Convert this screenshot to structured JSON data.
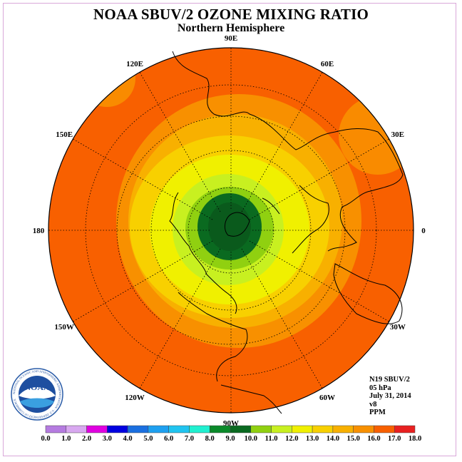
{
  "title": "NOAA SBUV/2 OZONE MIXING RATIO",
  "subtitle": "Northern Hemisphere",
  "longitude_labels": [
    "90E",
    "60E",
    "30E",
    "0",
    "30W",
    "60W",
    "90W",
    "120W",
    "150W",
    "180",
    "150E",
    "120E"
  ],
  "info": {
    "instrument": "N19 SBUV/2",
    "pressure": "05 hPa",
    "date": "July 31, 2014",
    "version": "v8",
    "units": "PPM"
  },
  "logo": {
    "text": "NOAA",
    "ring_text": "NATIONAL OCEANIC AND ATMOSPHERIC ADMINISTRATION · U.S. DEPARTMENT OF COMMERCE"
  },
  "colorbar": {
    "ticks": [
      "0.0",
      "1.0",
      "2.0",
      "3.0",
      "4.0",
      "5.0",
      "6.0",
      "7.0",
      "8.0",
      "9.0",
      "10.0",
      "11.0",
      "12.0",
      "13.0",
      "14.0",
      "15.0",
      "16.0",
      "17.0",
      "18.0"
    ],
    "colors": [
      "#b57be0",
      "#d8a8f0",
      "#e000e0",
      "#0000e0",
      "#1a6fe0",
      "#1ea0f0",
      "#20c4f0",
      "#20f0d0",
      "#0a8a2a",
      "#0a6a20",
      "#90d010",
      "#c8f020",
      "#f0f000",
      "#f8d000",
      "#f8b000",
      "#f89000",
      "#f86000",
      "#e82020",
      "#804020"
    ]
  },
  "chart_data": {
    "type": "heatmap",
    "projection": "polar stereographic, Northern Hemisphere",
    "variable": "ozone mixing ratio",
    "units": "PPM",
    "scale_range": [
      0.0,
      18.0
    ],
    "contours_approx_ppm": [
      {
        "region": "pole",
        "value_range": [
          9.0,
          10.0
        ]
      },
      {
        "region": "high-latitude ring",
        "value_range": [
          10.0,
          11.0
        ]
      },
      {
        "region": "high-latitude ring",
        "value_range": [
          11.0,
          12.0
        ]
      },
      {
        "region": "mid-high latitudes",
        "value_range": [
          12.0,
          13.0
        ]
      },
      {
        "region": "mid latitudes",
        "value_range": [
          13.0,
          14.0
        ]
      },
      {
        "region": "mid latitudes",
        "value_range": [
          14.0,
          15.0
        ]
      },
      {
        "region": "subtropics",
        "value_range": [
          15.0,
          16.0
        ]
      },
      {
        "region": "tropics",
        "value_range": [
          16.0,
          17.0
        ]
      }
    ]
  }
}
